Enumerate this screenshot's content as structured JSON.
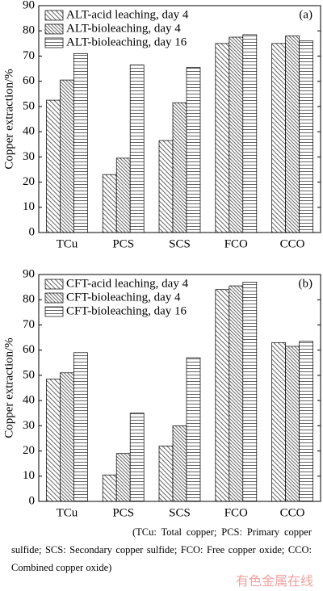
{
  "chart_data": [
    {
      "type": "bar",
      "annotation": "(a)",
      "y_label": "Copper extraction/%",
      "categories": [
        "TCu",
        "PCS",
        "SCS",
        "FCO",
        "CCO"
      ],
      "series": [
        {
          "name": "ALT-acid leaching, day 4",
          "color": "#000000",
          "hatch": "diagonal",
          "values": [
            52.5,
            23,
            36.5,
            75,
            75
          ]
        },
        {
          "name": "ALT-bioleaching, day 4",
          "color": "#000000",
          "hatch": "diagonal-dense",
          "values": [
            60.5,
            29.5,
            51.5,
            77.5,
            78
          ]
        },
        {
          "name": "ALT-bioleaching, day 16",
          "color": "#000000",
          "hatch": "horizontal",
          "values": [
            71,
            66.5,
            65.5,
            78.5,
            76
          ]
        }
      ],
      "ylim": [
        0,
        90
      ],
      "yticks": [
        0,
        10,
        20,
        30,
        40,
        50,
        60,
        70,
        80,
        90
      ],
      "legend": "top-left"
    },
    {
      "type": "bar",
      "annotation": "(b)",
      "y_label": "Copper extraction/%",
      "categories": [
        "TCu",
        "PCS",
        "SCS",
        "FCO",
        "CCO"
      ],
      "series": [
        {
          "name": "CFT-acid leaching, day 4",
          "color": "#000000",
          "hatch": "diagonal",
          "values": [
            48.5,
            10.5,
            22,
            84,
            63
          ]
        },
        {
          "name": "CFT-bioleaching, day 4",
          "color": "#000000",
          "hatch": "diagonal-dense",
          "values": [
            51,
            19,
            30,
            85.5,
            61.5
          ]
        },
        {
          "name": "CFT-bioleaching, day 16",
          "color": "#000000",
          "hatch": "horizontal",
          "values": [
            59,
            35,
            57,
            87,
            63.5
          ]
        }
      ],
      "ylim": [
        0,
        90
      ],
      "yticks": [
        0,
        10,
        20,
        30,
        40,
        50,
        60,
        70,
        80,
        90
      ],
      "legend": "top-left"
    }
  ],
  "caption": "(TCu: Total copper; PCS: Primary copper sulfide; SCS: Secondary copper sulfide; FCO: Free copper oxide; CCO: Combined copper oxide)",
  "watermark": "有色金属在线"
}
